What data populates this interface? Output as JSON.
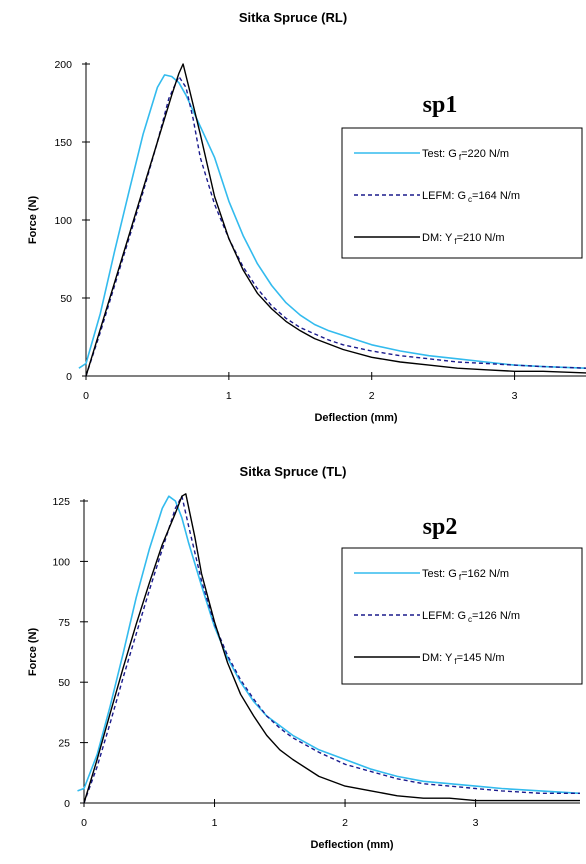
{
  "colors": {
    "test": "#33bbee",
    "lefm": "#1a1a8c",
    "dm": "#000000"
  },
  "chart_data": [
    {
      "type": "line",
      "title": "Sitka Spruce (RL)",
      "tag": "sp1",
      "xlabel": "Deflection (mm)",
      "ylabel": "Force (N)",
      "xlim": [
        0,
        3.5
      ],
      "ylim": [
        0,
        200
      ],
      "xticks": [
        "0",
        "1",
        "2",
        "3"
      ],
      "yticks": [
        "0",
        "50",
        "100",
        "150",
        "200"
      ],
      "grid": false,
      "legend_position": "right",
      "legend": [
        {
          "prefix": "Test: G",
          "sub": "f",
          "suffix": "=220 N/m"
        },
        {
          "prefix": "LEFM: G",
          "sub": "c",
          "suffix": "=164 N/m"
        },
        {
          "prefix": "DM: Y",
          "sub": "f",
          "suffix": "=210 N/m"
        }
      ],
      "series": [
        {
          "name": "Test: Gf=220 N/m",
          "style": "test",
          "x": [
            -0.05,
            0,
            0.1,
            0.2,
            0.3,
            0.4,
            0.5,
            0.55,
            0.6,
            0.65,
            0.7,
            0.75,
            0.8,
            0.9,
            1.0,
            1.1,
            1.2,
            1.3,
            1.4,
            1.5,
            1.6,
            1.7,
            1.8,
            1.9,
            2.0,
            2.2,
            2.4,
            2.6,
            2.8,
            3.0,
            3.2,
            3.5
          ],
          "y": [
            5,
            8,
            40,
            80,
            118,
            155,
            185,
            193,
            192,
            188,
            180,
            170,
            160,
            140,
            112,
            90,
            72,
            58,
            47,
            39,
            33,
            29,
            26,
            23,
            20,
            16,
            13,
            11,
            9,
            7,
            6,
            5
          ]
        },
        {
          "name": "LEFM: Gc=164 N/m",
          "style": "lefm",
          "x": [
            0,
            0.1,
            0.2,
            0.3,
            0.4,
            0.5,
            0.58,
            0.65,
            0.7,
            0.75,
            0.8,
            0.9,
            1.0,
            1.1,
            1.2,
            1.3,
            1.4,
            1.5,
            1.6,
            1.7,
            1.8,
            2.0,
            2.2,
            2.4,
            2.6,
            2.8,
            3.0,
            3.2,
            3.5
          ],
          "y": [
            0,
            28,
            58,
            88,
            118,
            150,
            178,
            192,
            185,
            165,
            140,
            110,
            88,
            70,
            56,
            45,
            37,
            31,
            27,
            23,
            20,
            16,
            13,
            11,
            9,
            8,
            7,
            6,
            5
          ]
        },
        {
          "name": "DM: Yf=210 N/m",
          "style": "dm",
          "x": [
            0,
            0.1,
            0.2,
            0.3,
            0.4,
            0.5,
            0.6,
            0.65,
            0.68,
            0.72,
            0.8,
            0.9,
            1.0,
            1.1,
            1.2,
            1.3,
            1.4,
            1.5,
            1.6,
            1.8,
            2.0,
            2.2,
            2.4,
            2.6,
            2.8,
            3.0,
            3.2,
            3.5
          ],
          "y": [
            0,
            30,
            60,
            90,
            120,
            150,
            180,
            194,
            200,
            185,
            155,
            115,
            88,
            68,
            53,
            43,
            35,
            29,
            24,
            17,
            12,
            9,
            7,
            5,
            4,
            3,
            3,
            2
          ]
        }
      ]
    },
    {
      "type": "line",
      "title": "Sitka Spruce (TL)",
      "tag": "sp2",
      "xlabel": "Deflection (mm)",
      "ylabel": "Force (N)",
      "xlim": [
        0,
        3.8
      ],
      "ylim": [
        0,
        125
      ],
      "xticks": [
        "0",
        "1",
        "2",
        "3"
      ],
      "yticks": [
        "0",
        "25",
        "50",
        "75",
        "100",
        "125"
      ],
      "grid": false,
      "legend_position": "right",
      "legend": [
        {
          "prefix": "Test: G",
          "sub": "f",
          "suffix": "=162 N/m"
        },
        {
          "prefix": "LEFM: G",
          "sub": "c",
          "suffix": "=126 N/m"
        },
        {
          "prefix": "DM: Y",
          "sub": "f",
          "suffix": "=145 N/m"
        }
      ],
      "series": [
        {
          "name": "Test: Gf=162 N/m",
          "style": "test",
          "x": [
            -0.05,
            0,
            0.1,
            0.2,
            0.3,
            0.4,
            0.5,
            0.6,
            0.65,
            0.7,
            0.75,
            0.8,
            0.9,
            1.0,
            1.1,
            1.2,
            1.3,
            1.4,
            1.5,
            1.6,
            1.8,
            2.0,
            2.2,
            2.4,
            2.6,
            2.8,
            3.0,
            3.2,
            3.5,
            3.8
          ],
          "y": [
            5,
            6,
            20,
            40,
            62,
            85,
            105,
            122,
            127,
            125,
            118,
            108,
            90,
            73,
            60,
            50,
            42,
            36,
            32,
            28,
            22,
            18,
            14,
            11,
            9,
            8,
            7,
            6,
            5,
            4
          ]
        },
        {
          "name": "LEFM: Gc=126 N/m",
          "style": "lefm",
          "x": [
            0,
            0.1,
            0.2,
            0.3,
            0.4,
            0.5,
            0.6,
            0.7,
            0.75,
            0.8,
            0.9,
            1.0,
            1.1,
            1.2,
            1.3,
            1.4,
            1.5,
            1.6,
            1.8,
            2.0,
            2.2,
            2.4,
            2.6,
            2.8,
            3.0,
            3.2,
            3.5,
            3.8
          ],
          "y": [
            0,
            15,
            33,
            52,
            70,
            88,
            105,
            122,
            127,
            115,
            92,
            74,
            61,
            51,
            43,
            36,
            31,
            27,
            21,
            16,
            13,
            10,
            8,
            7,
            6,
            5,
            4,
            4
          ]
        },
        {
          "name": "DM: Yf=145 N/m",
          "style": "dm",
          "x": [
            0,
            0.1,
            0.2,
            0.3,
            0.4,
            0.5,
            0.6,
            0.7,
            0.75,
            0.78,
            0.85,
            0.9,
            1.0,
            1.1,
            1.2,
            1.3,
            1.4,
            1.5,
            1.6,
            1.8,
            2.0,
            2.2,
            2.4,
            2.6,
            2.8,
            3.0,
            3.2,
            3.5,
            3.8
          ],
          "y": [
            0,
            18,
            37,
            56,
            74,
            91,
            107,
            120,
            127,
            128,
            110,
            95,
            75,
            58,
            45,
            36,
            28,
            22,
            18,
            11,
            7,
            5,
            3,
            2,
            2,
            1,
            1,
            1,
            1
          ]
        }
      ]
    }
  ]
}
